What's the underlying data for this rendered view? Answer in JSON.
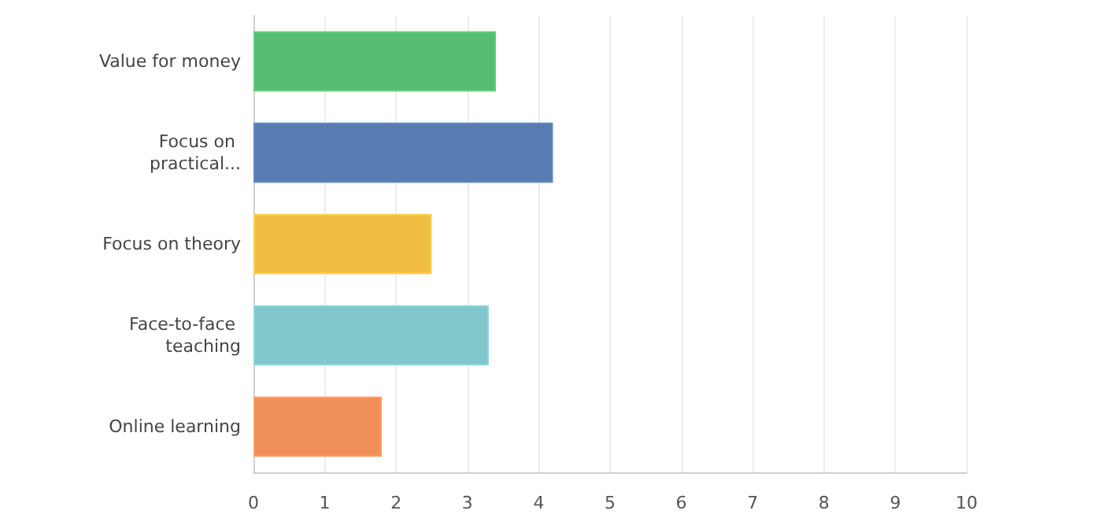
{
  "chart_data": {
    "type": "bar",
    "orientation": "horizontal",
    "categories": [
      "Value for money",
      "Focus on practical...",
      "Focus on theory",
      "Face-to-face teaching",
      "Online learning"
    ],
    "values": [
      3.4,
      4.2,
      2.5,
      3.3,
      1.8
    ],
    "colors": [
      "#57bd72",
      "#587cb1",
      "#f0bd42",
      "#80c6cb",
      "#ef8f5b"
    ],
    "xlim": [
      0,
      10
    ],
    "xticks": [
      0,
      1,
      2,
      3,
      4,
      5,
      6,
      7,
      8,
      9,
      10
    ],
    "grid": "x"
  }
}
